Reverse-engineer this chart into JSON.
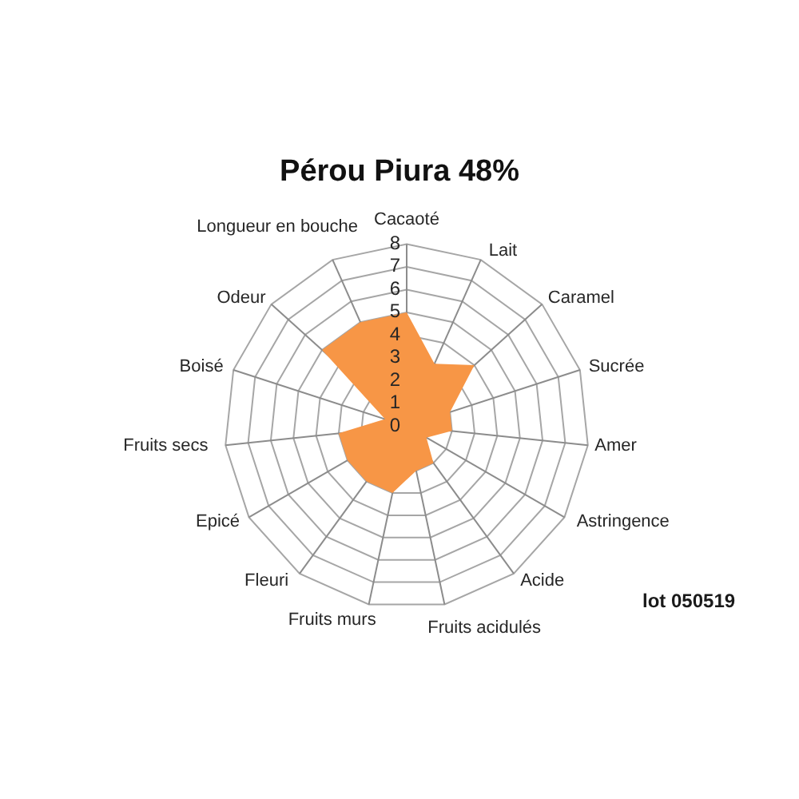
{
  "chart_data": {
    "type": "radar",
    "title": "Pérou Piura 48%",
    "categories": [
      "Cacaoté",
      "Lait",
      "Caramel",
      "Sucrée",
      "Amer",
      "Astringence",
      "Acide",
      "Fruits acidulés",
      "Fruits murs",
      "Fleuri",
      "Epicé",
      "Fruits secs",
      "Boisé",
      "Odeur",
      "Longueur en bouche"
    ],
    "series": [
      {
        "color": "#f79646",
        "values": [
          5,
          3,
          4,
          2,
          2,
          1,
          2,
          2,
          3,
          3,
          3,
          3,
          1,
          5,
          5
        ]
      }
    ],
    "ylim": [
      0,
      8
    ],
    "yticks": [
      0,
      1,
      2,
      3,
      4,
      5,
      6,
      7,
      8
    ],
    "grid": true,
    "annotations": [
      "lot 050519"
    ]
  }
}
